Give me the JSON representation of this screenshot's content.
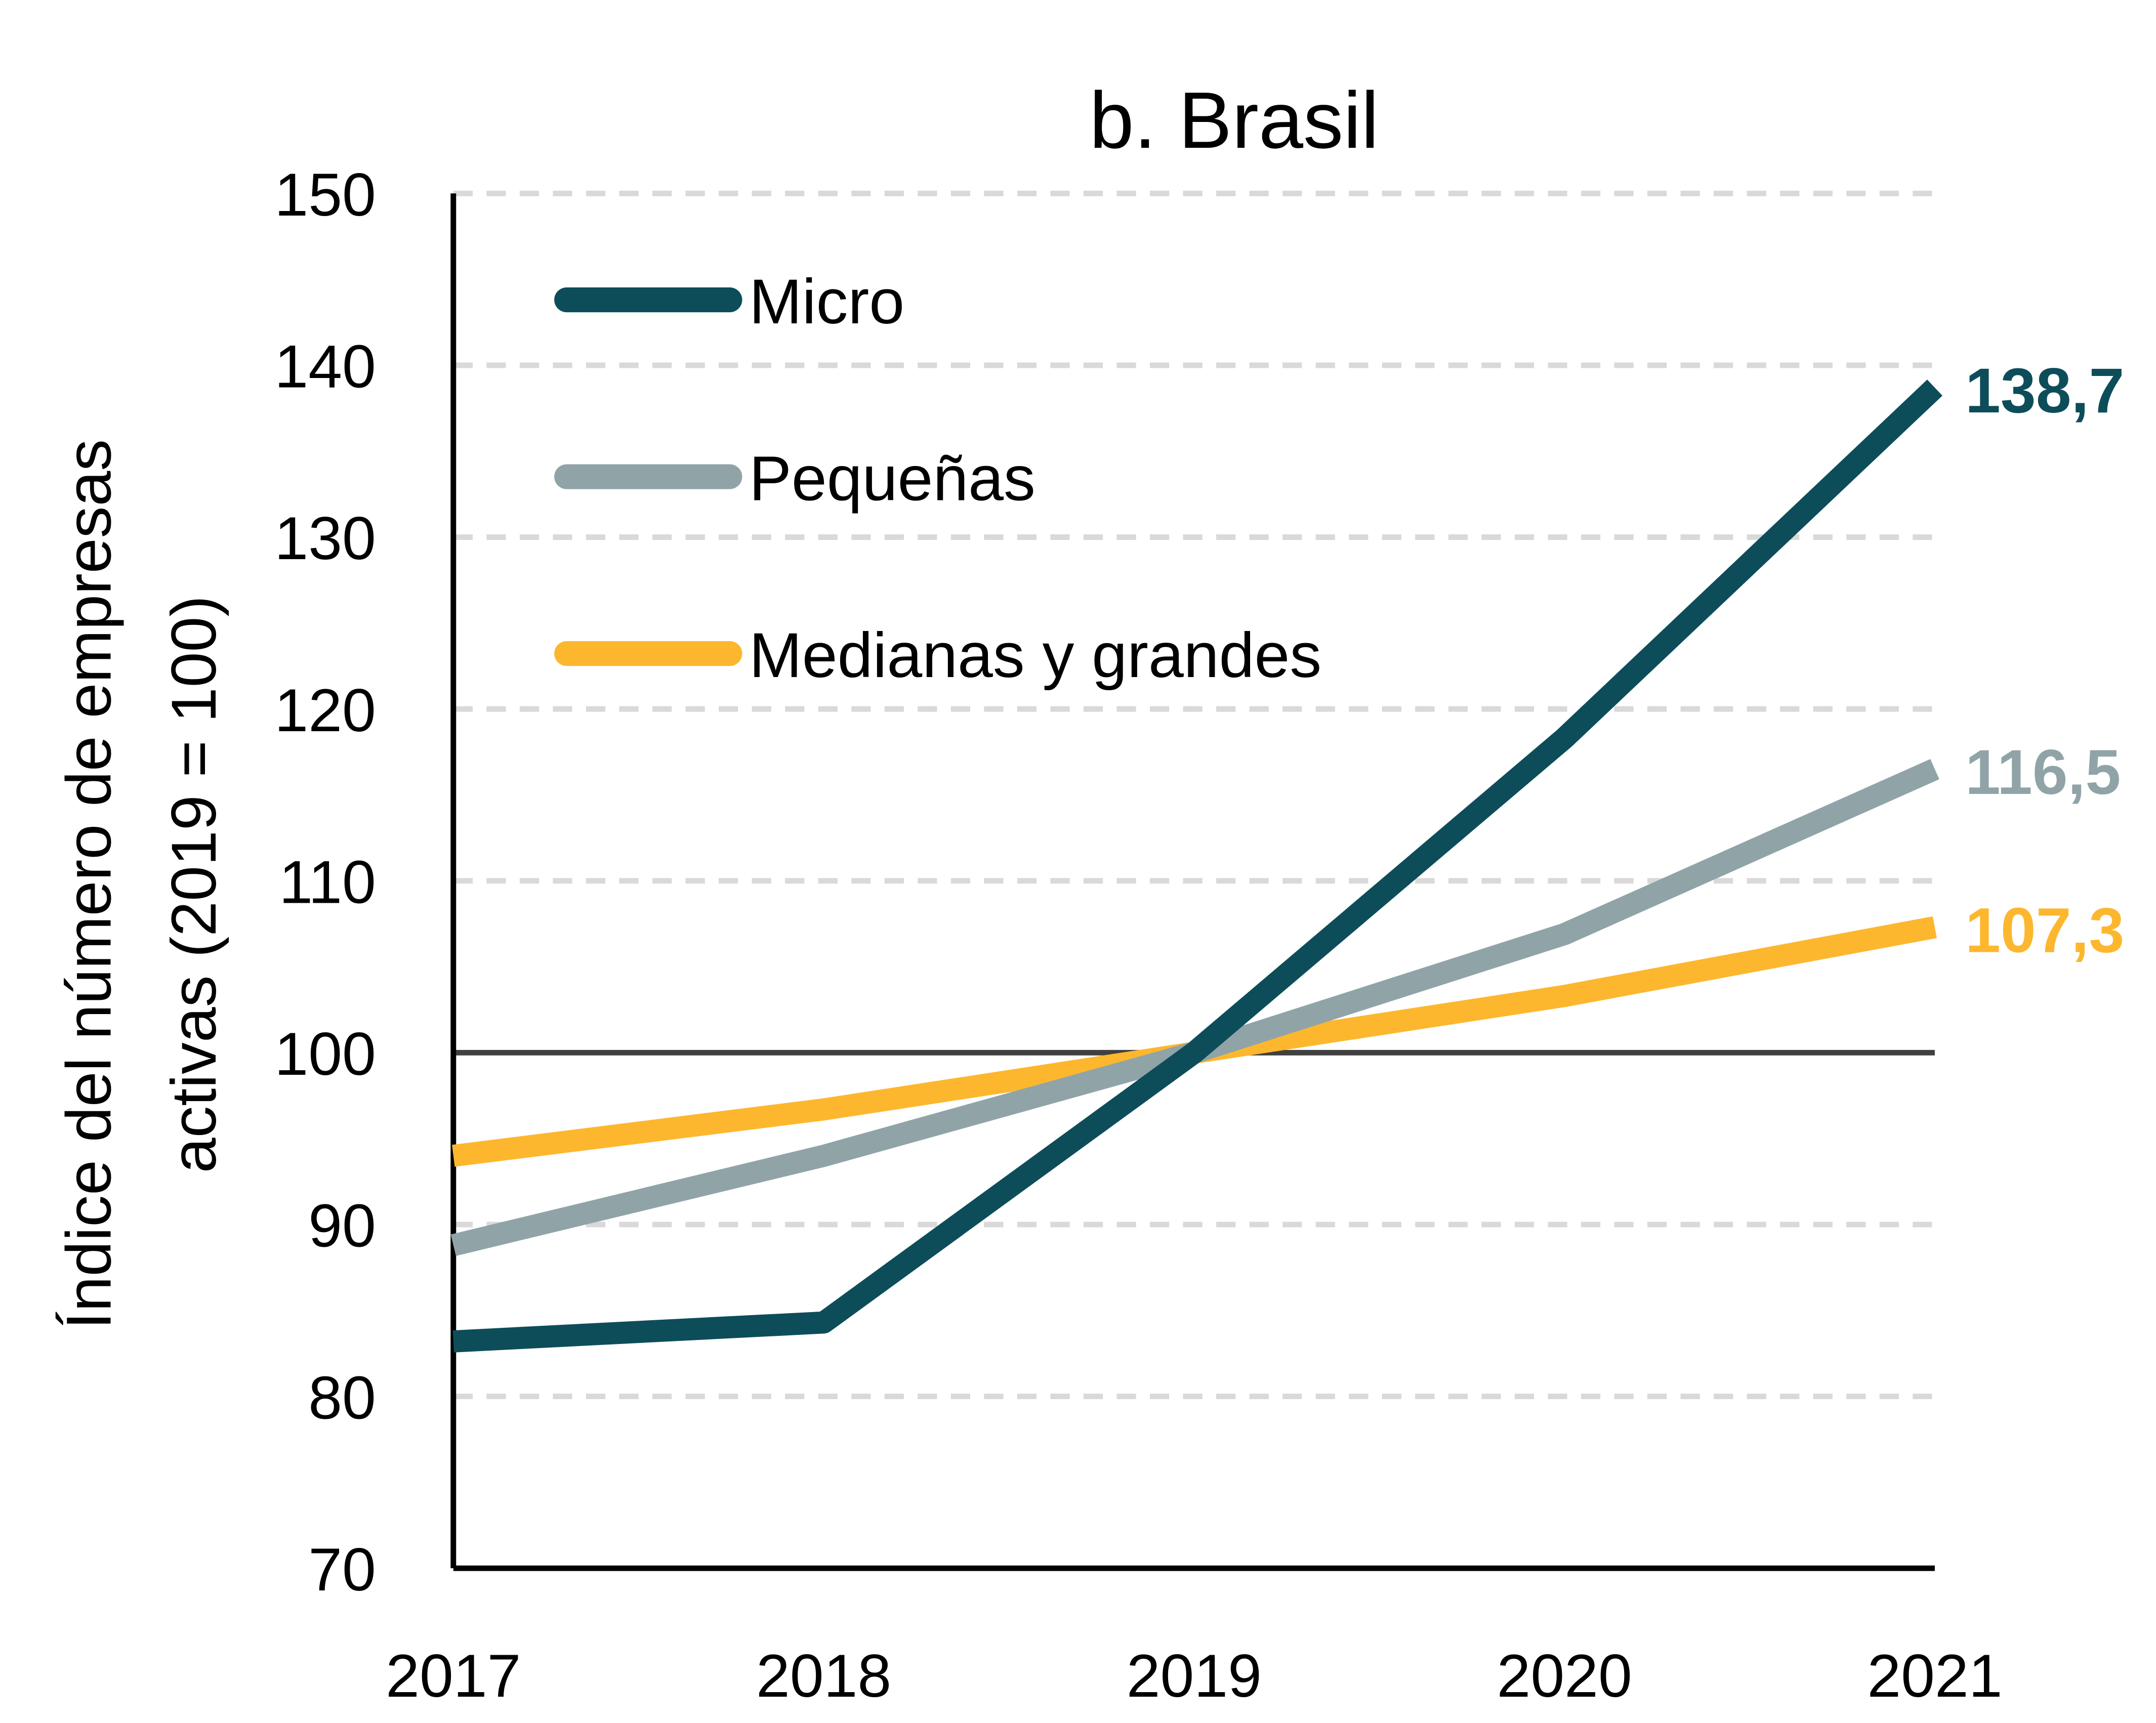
{
  "chart_data": {
    "type": "line",
    "title": "b. Brasil",
    "xlabel": "",
    "ylabel": "Índice del número de empresas activas (2019 = 100)",
    "ylabel_lines": [
      "Índice del número de empresas",
      "activas (2019 = 100)"
    ],
    "x": [
      "2017",
      "2018",
      "2019",
      "2020",
      "2021"
    ],
    "ylim": [
      70,
      150
    ],
    "yticks": [
      "70",
      "80",
      "90",
      "100",
      "110",
      "120",
      "130",
      "140",
      "150"
    ],
    "grid": true,
    "reference_line": 100,
    "legend_position": "top-left",
    "series": [
      {
        "name": "Micro",
        "color": "#0d4d5a",
        "values": [
          83.2,
          84.3,
          100,
          118.3,
          138.7
        ],
        "end_label": "138,7"
      },
      {
        "name": "Pequeñas",
        "color": "#90a4a8",
        "values": [
          88.8,
          94.0,
          100,
          106.9,
          116.5
        ],
        "end_label": "116,5"
      },
      {
        "name": "Medianas y grandes",
        "color": "#fdb72e",
        "values": [
          94.0,
          96.7,
          100,
          103.3,
          107.3
        ],
        "end_label": "107,3"
      }
    ]
  }
}
